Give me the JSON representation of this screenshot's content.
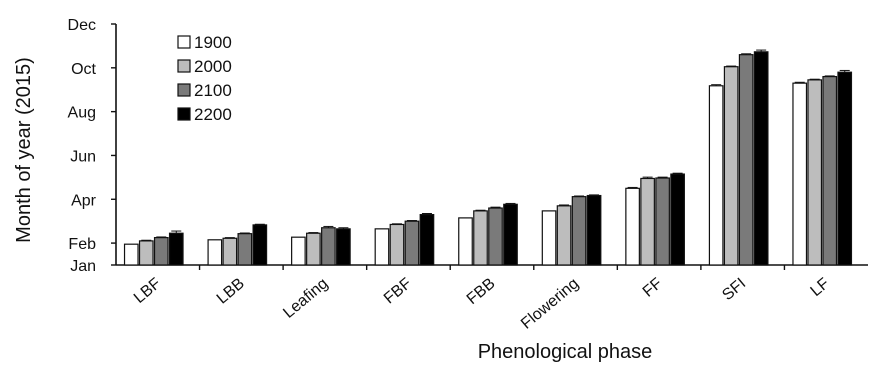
{
  "chart_data": {
    "type": "bar",
    "xlabel": "Phenological phase",
    "ylabel": "Month of year (2015)",
    "y_tick_labels": [
      "Jan",
      "Feb",
      "Apr",
      "Jun",
      "Aug",
      "Oct",
      "Dec"
    ],
    "y_tick_values": [
      1,
      2,
      4,
      6,
      8,
      10,
      12
    ],
    "ylim": [
      1,
      12
    ],
    "categories": [
      "LBF",
      "LBB",
      "Leafing",
      "FBF",
      "FBB",
      "Flowering",
      "FF",
      "SFI",
      "LF"
    ],
    "series": [
      {
        "name": "1900",
        "color": "#ffffff",
        "values": [
          1.95,
          2.15,
          2.27,
          2.65,
          3.15,
          3.47,
          4.5,
          9.18,
          9.3
        ]
      },
      {
        "name": "2000",
        "color": "#bdbdbd",
        "values": [
          2.1,
          2.22,
          2.45,
          2.85,
          3.47,
          3.7,
          4.95,
          10.05,
          9.45
        ]
      },
      {
        "name": "2100",
        "color": "#7a7a7a",
        "values": [
          2.25,
          2.43,
          2.7,
          3.0,
          3.6,
          4.12,
          4.97,
          10.6,
          9.6
        ]
      },
      {
        "name": "2200",
        "color": "#000000",
        "values": [
          2.45,
          2.83,
          2.65,
          3.3,
          3.77,
          4.17,
          5.15,
          10.73,
          9.8
        ]
      }
    ],
    "error_bars": [
      [
        0,
        0,
        0,
        0,
        0,
        0,
        0.04,
        0.05,
        0.04
      ],
      [
        0.03,
        0.03,
        0.03,
        0.03,
        0.03,
        0.04,
        0.06,
        0.03,
        0.03
      ],
      [
        0.03,
        0.03,
        0.06,
        0.03,
        0.04,
        0.03,
        0.04,
        0.04,
        0.03
      ],
      [
        0.1,
        0.03,
        0.05,
        0.05,
        0.04,
        0.03,
        0.04,
        0.08,
        0.08
      ]
    ],
    "legend_position": "top-left",
    "grid": false
  }
}
